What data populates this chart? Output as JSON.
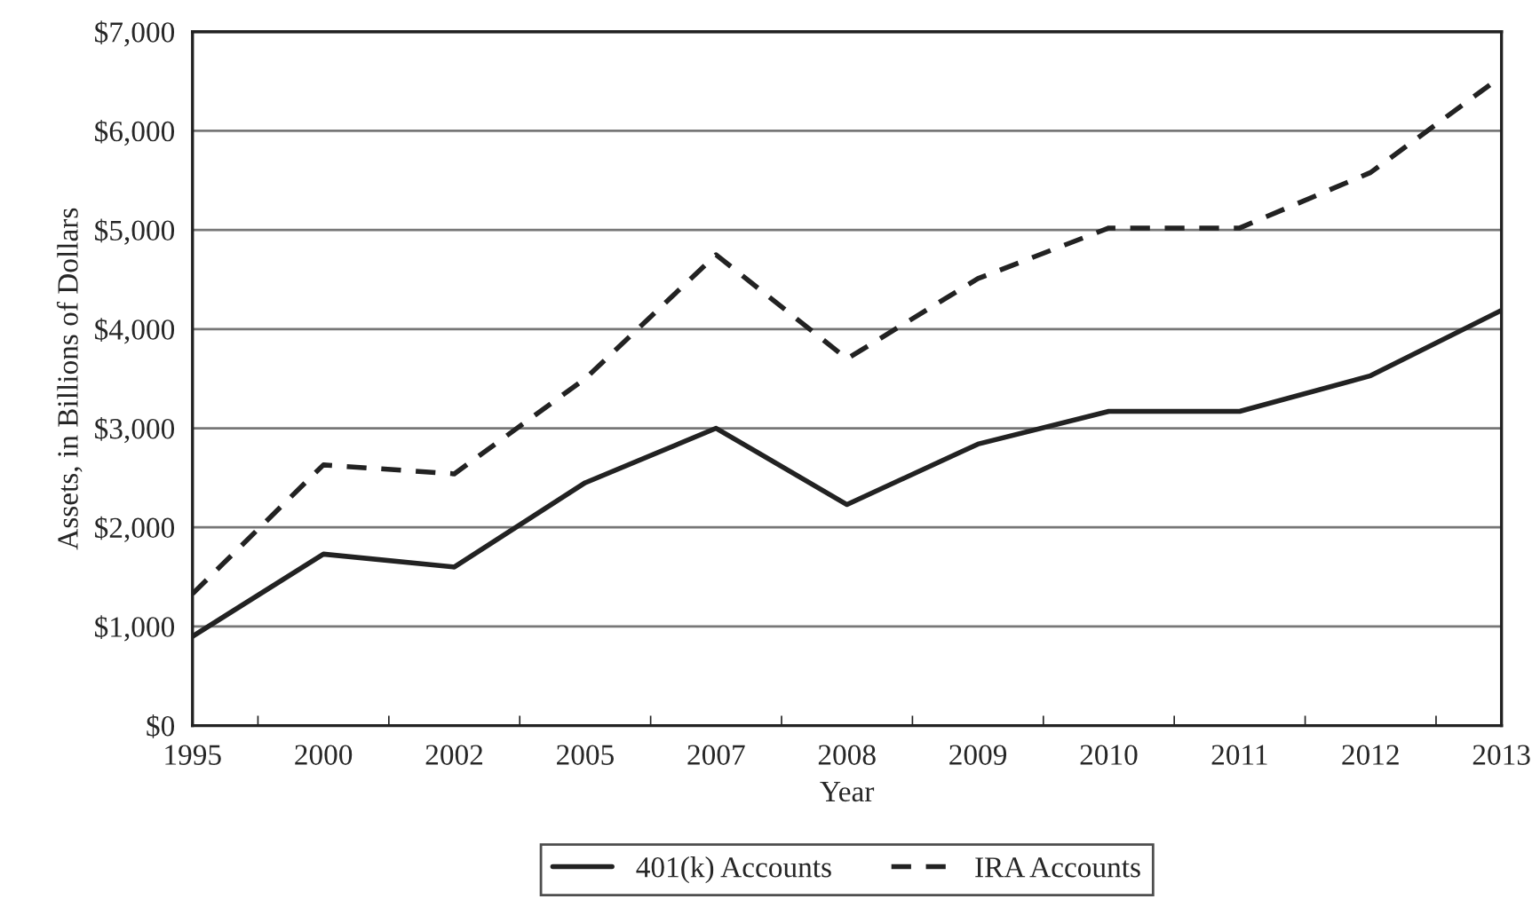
{
  "chart_data": {
    "type": "line",
    "xlabel": "Year",
    "ylabel": "Assets, in Billions of Dollars",
    "categories": [
      "1995",
      "2000",
      "2002",
      "2005",
      "2007",
      "2008",
      "2009",
      "2010",
      "2011",
      "2012",
      "2013"
    ],
    "series": [
      {
        "name": "401(k) Accounts",
        "color": "#222222",
        "line_style": "solid",
        "values": [
          900,
          1730,
          1600,
          2450,
          3000,
          2230,
          2840,
          3170,
          3170,
          3530,
          4190
        ]
      },
      {
        "name": "IRA Accounts",
        "color": "#222222",
        "line_style": "dashed",
        "values": [
          1330,
          2630,
          2540,
          3500,
          4750,
          3700,
          4510,
          5020,
          5020,
          5580,
          6550
        ]
      }
    ],
    "ylim": [
      0,
      7000
    ],
    "yticks": [
      {
        "value": 0,
        "label": "$0"
      },
      {
        "value": 1000,
        "label": "$1,000"
      },
      {
        "value": 2000,
        "label": "$2,000"
      },
      {
        "value": 3000,
        "label": "$3,000"
      },
      {
        "value": 4000,
        "label": "$4,000"
      },
      {
        "value": 5000,
        "label": "$5,000"
      },
      {
        "value": 6000,
        "label": "$6,000"
      },
      {
        "value": 7000,
        "label": "$7,000"
      }
    ],
    "grid": "y",
    "legend": "bottom",
    "marker": "none"
  }
}
